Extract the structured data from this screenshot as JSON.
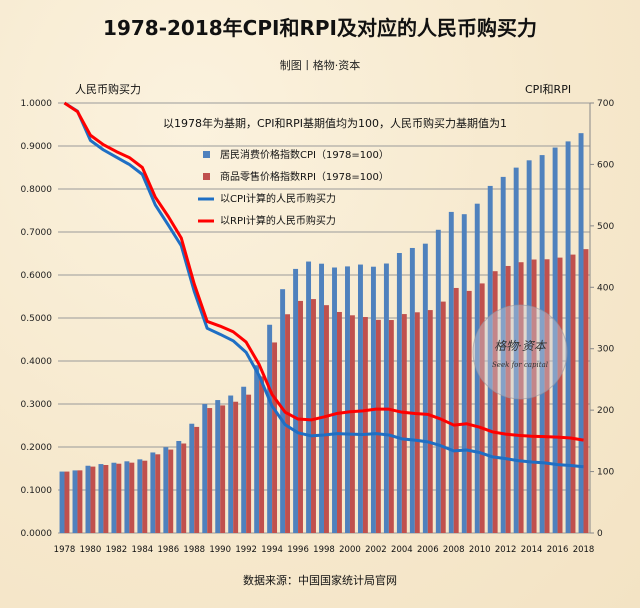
{
  "chart_data": {
    "type": "bar+line",
    "title": "1978-2018年CPI和RPI及对应的人民币购买力",
    "subtitle": "制图丨格物·资本",
    "annotation": "以1978年为基期，CPI和RPI基期值均为100，人民币购买力基期值为1",
    "source": "数据来源：中国国家统计局官网",
    "y_left_label": "人民币购买力",
    "y_right_label": "CPI和RPI",
    "y_left_lim": [
      0,
      1
    ],
    "y_right_lim": [
      0,
      700
    ],
    "y_left_ticks": [
      "0.0000",
      "0.1000",
      "0.2000",
      "0.3000",
      "0.4000",
      "0.5000",
      "0.6000",
      "0.7000",
      "0.8000",
      "0.9000",
      "1.0000"
    ],
    "y_right_ticks": [
      "0",
      "100",
      "200",
      "300",
      "400",
      "500",
      "600",
      "700"
    ],
    "x_tick_labels": [
      "1978",
      "1980",
      "1982",
      "1984",
      "1986",
      "1988",
      "1990",
      "1992",
      "1994",
      "1996",
      "1998",
      "2000",
      "2002",
      "2004",
      "2006",
      "2008",
      "2010",
      "2012",
      "2014",
      "2016",
      "2018"
    ],
    "grid": true,
    "legend_position": "top-center",
    "categories": [
      1978,
      1979,
      1980,
      1981,
      1982,
      1983,
      1984,
      1985,
      1986,
      1987,
      1988,
      1989,
      1990,
      1991,
      1992,
      1993,
      1994,
      1995,
      1996,
      1997,
      1998,
      1999,
      2000,
      2001,
      2002,
      2003,
      2004,
      2005,
      2006,
      2007,
      2008,
      2009,
      2010,
      2011,
      2012,
      2013,
      2014,
      2015,
      2016,
      2017,
      2018
    ],
    "series": [
      {
        "name": "居民消费价格指数CPI（1978=100）",
        "type": "bar",
        "axis": "right",
        "color": "#4f81bd",
        "values": [
          100,
          101.9,
          109.5,
          112.2,
          114.4,
          116.7,
          119.9,
          131.1,
          139.6,
          149.8,
          177.9,
          209.9,
          216.4,
          223.8,
          238.1,
          273.1,
          339.0,
          396.9,
          429.9,
          441.9,
          438.4,
          432.2,
          434.0,
          437.0,
          433.5,
          438.7,
          455.8,
          464.0,
          471.0,
          493.6,
          522.7,
          519.0,
          536.1,
          565.0,
          579.7,
          594.8,
          606.7,
          615.2,
          627.5,
          637.5,
          650.9
        ]
      },
      {
        "name": "商品零售价格指数RPI（1978=100）",
        "type": "bar",
        "axis": "right",
        "color": "#c0504d",
        "values": [
          100,
          102.0,
          108.1,
          110.7,
          112.8,
          114.5,
          117.7,
          128.1,
          135.8,
          145.7,
          172.7,
          203.4,
          207.7,
          213.7,
          225.2,
          254.9,
          310.2,
          356.1,
          377.8,
          380.8,
          370.9,
          359.8,
          354.4,
          351.6,
          347.0,
          346.7,
          356.4,
          359.3,
          362.9,
          376.7,
          398.9,
          394.1,
          406.3,
          426.2,
          434.7,
          440.8,
          445.2,
          445.6,
          448.3,
          453.2,
          462.1
        ]
      },
      {
        "name": "以CPI计算的人民币购买力",
        "type": "line",
        "axis": "left",
        "color": "#1f6fc4",
        "values": [
          1.0,
          0.981,
          0.913,
          0.891,
          0.874,
          0.857,
          0.834,
          0.763,
          0.716,
          0.668,
          0.562,
          0.476,
          0.462,
          0.447,
          0.42,
          0.366,
          0.295,
          0.252,
          0.233,
          0.226,
          0.228,
          0.231,
          0.23,
          0.229,
          0.231,
          0.228,
          0.219,
          0.216,
          0.212,
          0.203,
          0.191,
          0.193,
          0.187,
          0.177,
          0.173,
          0.168,
          0.165,
          0.163,
          0.159,
          0.157,
          0.154
        ]
      },
      {
        "name": "以RPI计算的人民币购买力",
        "type": "line",
        "axis": "left",
        "color": "#ff0000",
        "values": [
          1.0,
          0.98,
          0.925,
          0.903,
          0.887,
          0.873,
          0.85,
          0.781,
          0.736,
          0.686,
          0.579,
          0.492,
          0.481,
          0.468,
          0.444,
          0.392,
          0.322,
          0.281,
          0.265,
          0.263,
          0.27,
          0.278,
          0.282,
          0.284,
          0.288,
          0.288,
          0.281,
          0.278,
          0.276,
          0.265,
          0.251,
          0.254,
          0.246,
          0.235,
          0.23,
          0.227,
          0.225,
          0.224,
          0.223,
          0.221,
          0.216
        ]
      }
    ],
    "watermark": {
      "text": "格物·资本",
      "tagline": "Seek for capital"
    }
  }
}
